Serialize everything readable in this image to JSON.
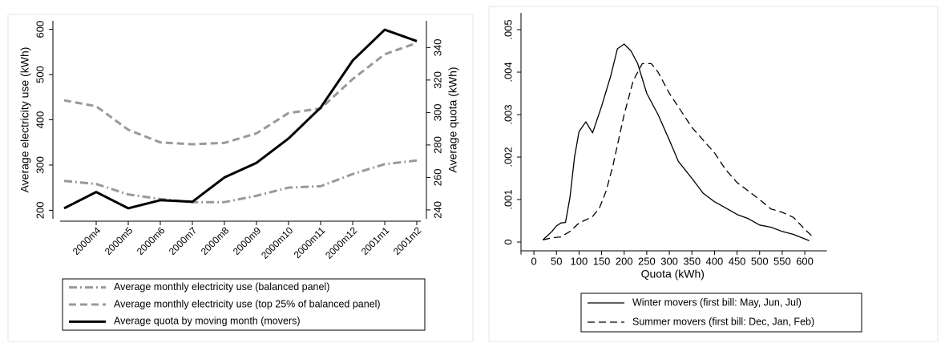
{
  "chart_data": [
    {
      "type": "line",
      "y_label": "Average electricity use (kWh)",
      "y2_label": "Average quota (kWh)",
      "categories": [
        null,
        "2000m4",
        "2000m5",
        "2000m6",
        "2000m7",
        "2000m8",
        "2000m9",
        "2000m10",
        "2000m11",
        "2000m12",
        "2001m1",
        "2001m2"
      ],
      "ylim": [
        190,
        610
      ],
      "yticks": [
        200,
        300,
        400,
        500,
        600
      ],
      "y2lim": [
        237,
        354
      ],
      "y2ticks": [
        240,
        260,
        280,
        300,
        320,
        340
      ],
      "legend": "bottom",
      "series": [
        {
          "name": "Average monthly electricity use (balanced panel)",
          "color": "#999999",
          "style": "dashdot",
          "values": [
            265,
            258,
            235,
            225,
            218,
            218,
            232,
            250,
            253,
            280,
            302,
            310
          ]
        },
        {
          "name": "Average monthly electricity use (top 25% of balanced panel)",
          "color": "#999999",
          "style": "dash",
          "values": [
            443,
            430,
            378,
            350,
            346,
            349,
            370,
            415,
            425,
            490,
            545,
            570
          ]
        },
        {
          "name": "Average quota by moving month (movers)",
          "color": "#000000",
          "style": "solid",
          "axis": "y2",
          "values": [
            241,
            251,
            241,
            246,
            245,
            260,
            269,
            284,
            303,
            332,
            351,
            344
          ]
        }
      ]
    },
    {
      "type": "line",
      "x_label": "Quota (kWh)",
      "xlim": [
        -25,
        640
      ],
      "xticks": [
        0,
        50,
        100,
        150,
        200,
        250,
        300,
        350,
        400,
        450,
        500,
        550,
        600
      ],
      "ylim": [
        -0.0002,
        0.0053
      ],
      "yticks": [
        0,
        {
          "value": 0.001,
          "label": ".001"
        },
        {
          "value": 0.002,
          "label": ".002"
        },
        {
          "value": 0.003,
          "label": ".003"
        },
        {
          "value": 0.004,
          "label": ".004"
        },
        {
          "value": 0.005,
          "label": ".005"
        }
      ],
      "legend": "bottom",
      "series": [
        {
          "name": "Winter movers (first bill: May, Jun, Jul)",
          "color": "#000000",
          "style": "solid",
          "x": [
            20,
            40,
            50,
            60,
            70,
            80,
            90,
            100,
            115,
            130,
            150,
            170,
            185,
            200,
            215,
            230,
            250,
            275,
            300,
            320,
            350,
            375,
            400,
            425,
            450,
            475,
            500,
            525,
            550,
            575,
            610
          ],
          "values": [
            5e-05,
            0.00025,
            0.00038,
            0.00045,
            0.00046,
            0.00105,
            0.002,
            0.0026,
            0.00283,
            0.00257,
            0.0032,
            0.0039,
            0.00455,
            0.00466,
            0.0045,
            0.0042,
            0.0035,
            0.003,
            0.0024,
            0.0019,
            0.0015,
            0.00115,
            0.00095,
            0.0008,
            0.00065,
            0.00055,
            0.0004,
            0.00035,
            0.00025,
            0.00018,
            3e-05
          ]
        },
        {
          "name": "Summer movers (first bill: Dec, Jan, Feb)",
          "color": "#000000",
          "style": "dash",
          "x": [
            20,
            40,
            60,
            80,
            100,
            115,
            130,
            145,
            160,
            175,
            200,
            220,
            240,
            260,
            275,
            300,
            325,
            350,
            375,
            400,
            425,
            450,
            475,
            500,
            525,
            550,
            575,
            600,
            615
          ],
          "values": [
            5e-05,
            0.0001,
            0.00012,
            0.00025,
            0.00045,
            0.00052,
            0.0006,
            0.0008,
            0.0012,
            0.0018,
            0.003,
            0.0038,
            0.0042,
            0.0042,
            0.004,
            0.0035,
            0.0031,
            0.0027,
            0.0024,
            0.0021,
            0.0017,
            0.0014,
            0.0012,
            0.001,
            0.00078,
            0.0007,
            0.00058,
            0.0003,
            0.00015
          ]
        }
      ]
    }
  ]
}
